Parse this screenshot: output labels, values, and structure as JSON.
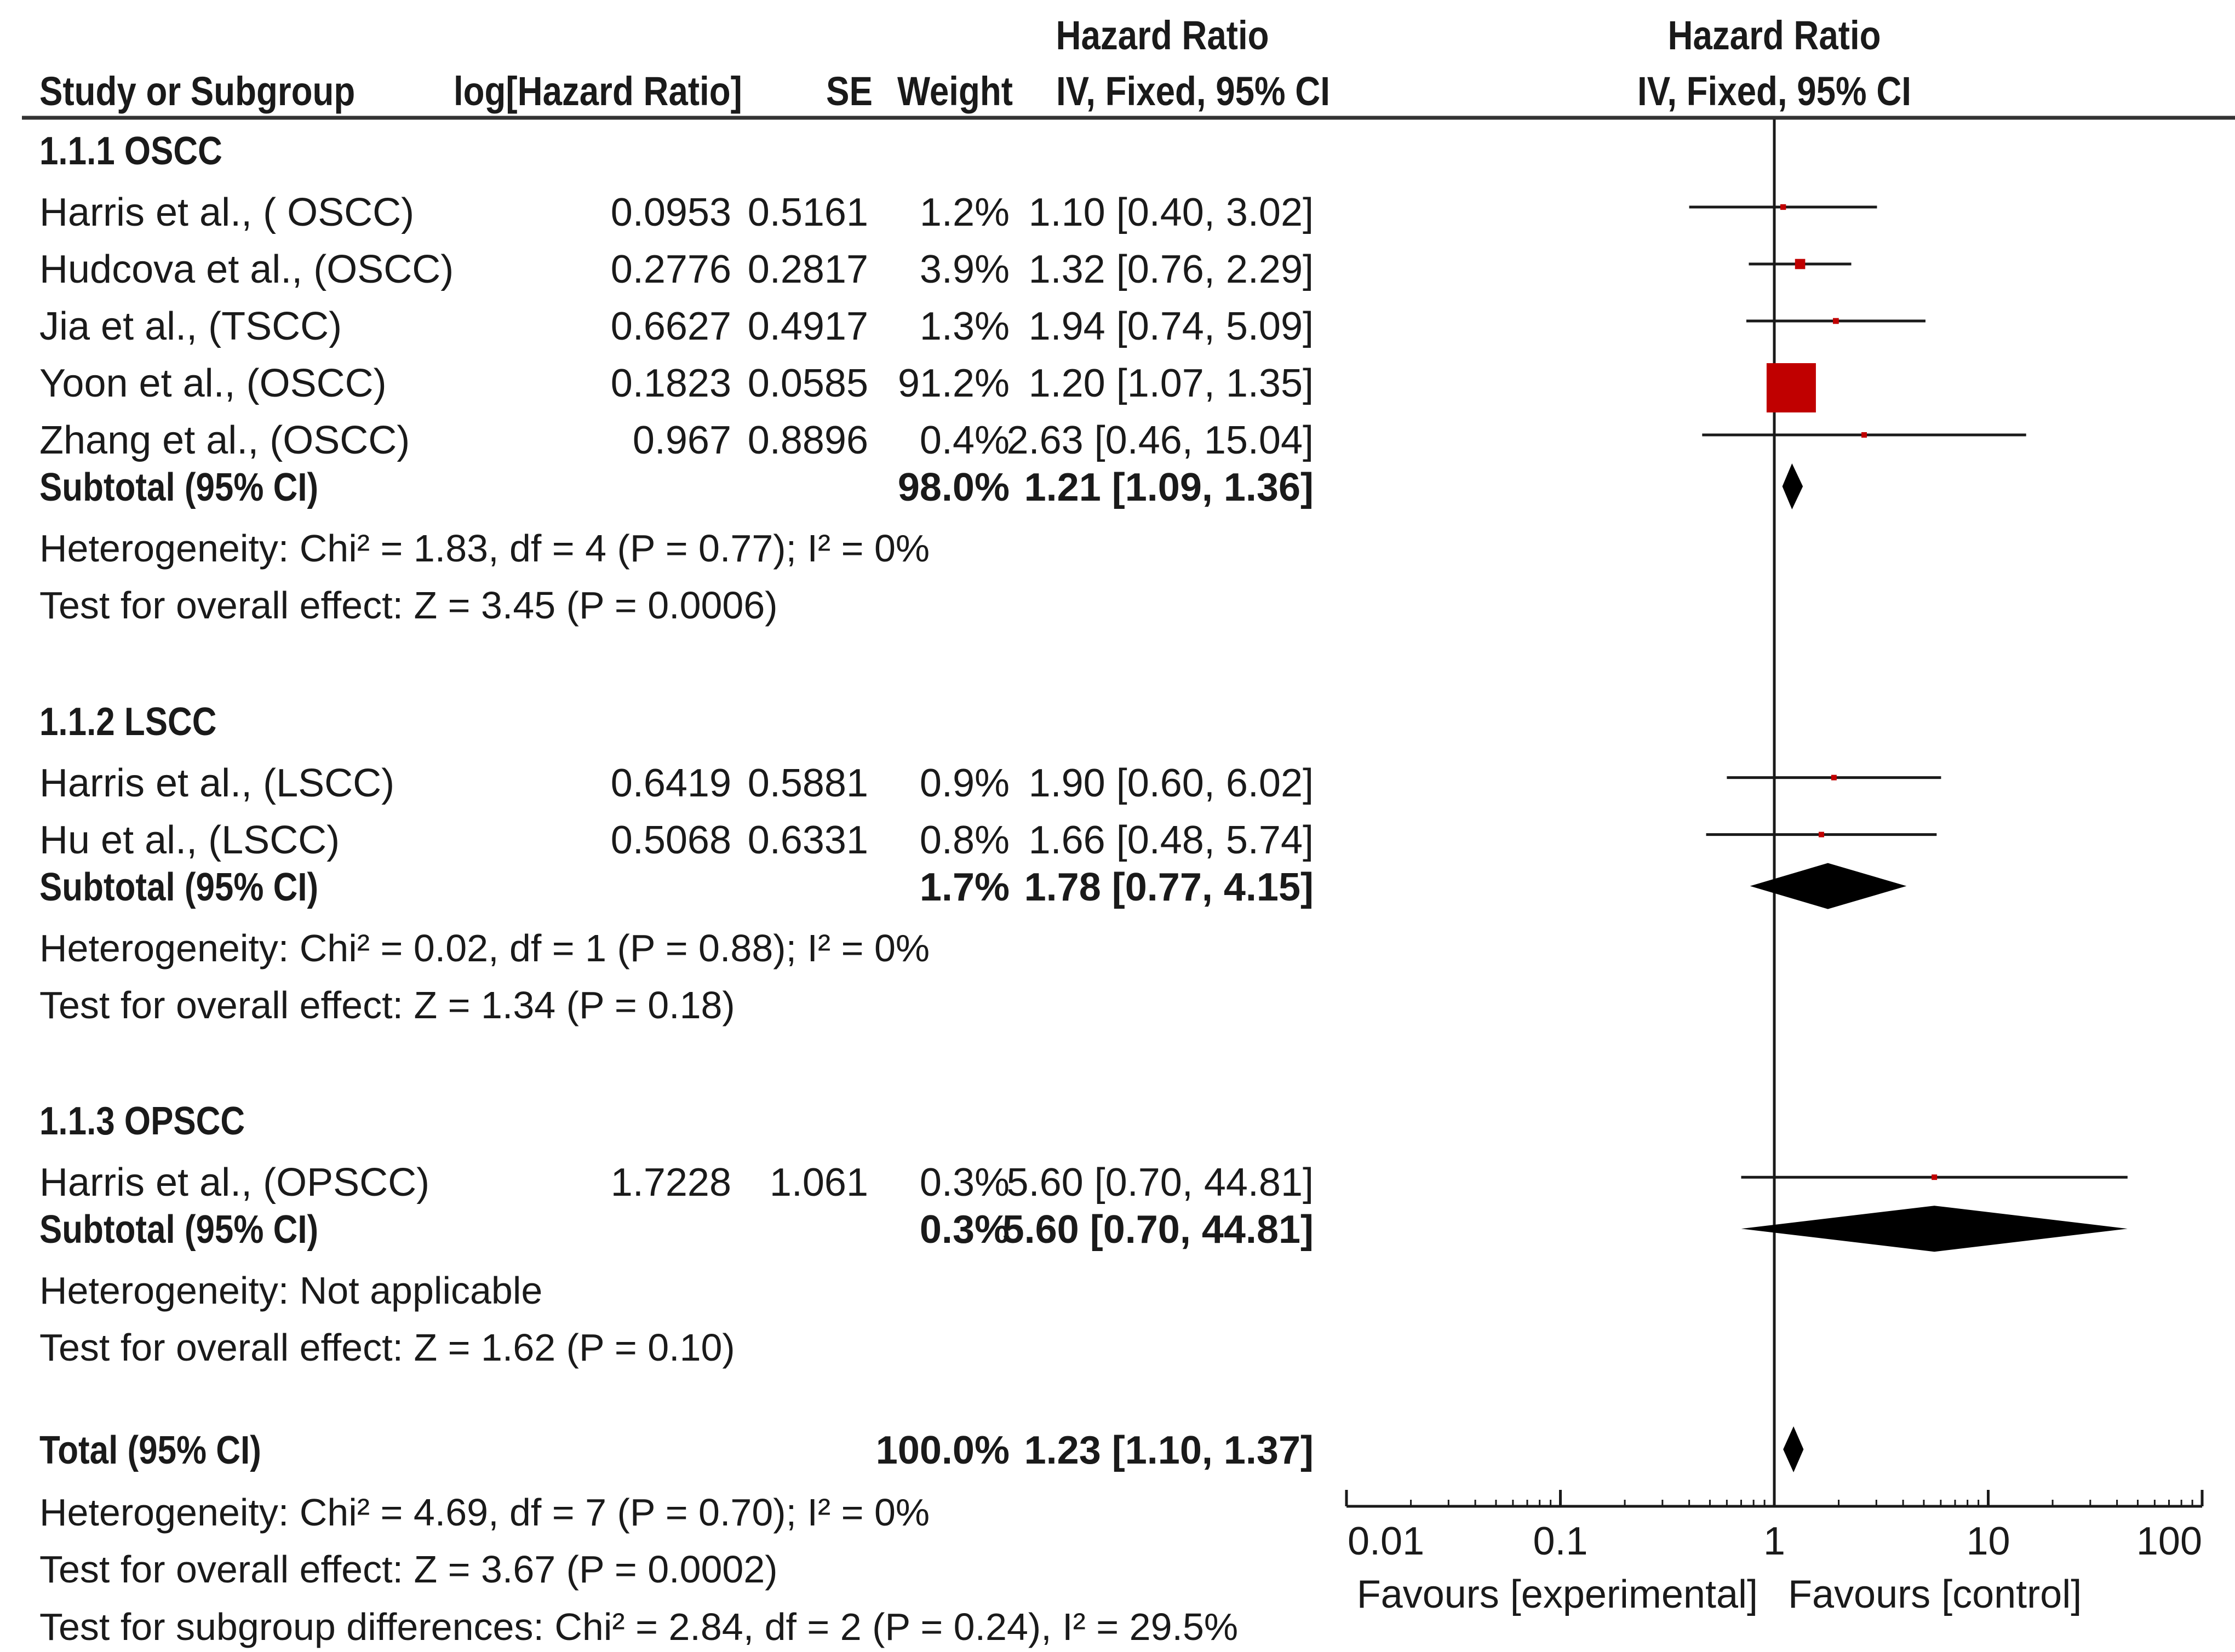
{
  "chart_data": {
    "type": "forest",
    "x_scale": "log",
    "xlim": [
      0.01,
      100
    ],
    "null_value": 1,
    "header": {
      "study": "Study or Subgroup",
      "loghr": "log[Hazard Ratio]",
      "se": "SE",
      "weight": "Weight",
      "ci_title": "Hazard Ratio",
      "ci_method": "IV, Fixed, 95% CI",
      "plot_title": "Hazard Ratio",
      "plot_method": "IV, Fixed, 95% CI"
    },
    "subgroups": [
      {
        "title": "1.1.1 OSCC",
        "studies": [
          {
            "name": "Harris et al., ( OSCC)",
            "loghr": "0.0953",
            "se": "0.5161",
            "weight": "1.2%",
            "ci": "1.10 [0.40, 3.02]",
            "hr": 1.1,
            "lo": 0.4,
            "hi": 3.02,
            "w": 1.2
          },
          {
            "name": "Hudcova et al., (OSCC)",
            "loghr": "0.2776",
            "se": "0.2817",
            "weight": "3.9%",
            "ci": "1.32 [0.76, 2.29]",
            "hr": 1.32,
            "lo": 0.76,
            "hi": 2.29,
            "w": 3.9
          },
          {
            "name": "Jia et al., (TSCC)",
            "loghr": "0.6627",
            "se": "0.4917",
            "weight": "1.3%",
            "ci": "1.94 [0.74, 5.09]",
            "hr": 1.94,
            "lo": 0.74,
            "hi": 5.09,
            "w": 1.3
          },
          {
            "name": "Yoon et al., (OSCC)",
            "loghr": "0.1823",
            "se": "0.0585",
            "weight": "91.2%",
            "ci": "1.20 [1.07, 1.35]",
            "hr": 1.2,
            "lo": 1.07,
            "hi": 1.35,
            "w": 91.2
          },
          {
            "name": "Zhang et al., (OSCC)",
            "loghr": "0.967",
            "se": "0.8896",
            "weight": "0.4%",
            "ci": "2.63 [0.46, 15.04]",
            "hr": 2.63,
            "lo": 0.46,
            "hi": 15.04,
            "w": 0.4
          }
        ],
        "subtotal": {
          "label": "Subtotal (95% CI)",
          "weight": "98.0%",
          "ci": "1.21 [1.09, 1.36]",
          "hr": 1.21,
          "lo": 1.09,
          "hi": 1.36
        },
        "heterogeneity": "Heterogeneity: Chi² = 1.83, df = 4 (P = 0.77); I² = 0%",
        "overall": "Test for overall effect: Z = 3.45 (P = 0.0006)"
      },
      {
        "title": "1.1.2 LSCC",
        "studies": [
          {
            "name": "Harris et al., (LSCC)",
            "loghr": "0.6419",
            "se": "0.5881",
            "weight": "0.9%",
            "ci": "1.90 [0.60, 6.02]",
            "hr": 1.9,
            "lo": 0.6,
            "hi": 6.02,
            "w": 0.9
          },
          {
            "name": "Hu et al., (LSCC)",
            "loghr": "0.5068",
            "se": "0.6331",
            "weight": "0.8%",
            "ci": "1.66 [0.48, 5.74]",
            "hr": 1.66,
            "lo": 0.48,
            "hi": 5.74,
            "w": 0.8
          }
        ],
        "subtotal": {
          "label": "Subtotal (95% CI)",
          "weight": "1.7%",
          "ci": "1.78 [0.77, 4.15]",
          "hr": 1.78,
          "lo": 0.77,
          "hi": 4.15
        },
        "heterogeneity": "Heterogeneity: Chi² = 0.02, df = 1 (P = 0.88); I² = 0%",
        "overall": "Test for overall effect: Z = 1.34 (P = 0.18)"
      },
      {
        "title": "1.1.3 OPSCC",
        "studies": [
          {
            "name": "Harris et al., (OPSCC)",
            "loghr": "1.7228",
            "se": "1.061",
            "weight": "0.3%",
            "ci": "5.60 [0.70, 44.81]",
            "hr": 5.6,
            "lo": 0.7,
            "hi": 44.81,
            "w": 0.3
          }
        ],
        "subtotal": {
          "label": "Subtotal (95% CI)",
          "weight": "0.3%",
          "ci": "5.60 [0.70, 44.81]",
          "hr": 5.6,
          "lo": 0.7,
          "hi": 44.81
        },
        "heterogeneity": "Heterogeneity: Not applicable",
        "overall": "Test for overall effect: Z = 1.62 (P = 0.10)"
      }
    ],
    "total": {
      "label": "Total (95% CI)",
      "weight": "100.0%",
      "ci": "1.23 [1.10, 1.37]",
      "hr": 1.23,
      "lo": 1.1,
      "hi": 1.37
    },
    "total_heterogeneity": "Heterogeneity: Chi² = 4.69, df = 7 (P = 0.70); I² = 0%",
    "total_overall": "Test for overall effect: Z = 3.67 (P = 0.0002)",
    "subgroup_differences": "Test for subgroup differences: Chi² = 2.84, df = 2 (P = 0.24), I² = 29.5%",
    "axis_ticks": [
      "0.01",
      "0.1",
      "1",
      "10",
      "100"
    ],
    "axis_tick_values": [
      0.01,
      0.1,
      1,
      10,
      100
    ],
    "favours_left": "Favours [experimental]",
    "favours_right": "Favours [control]",
    "colors": {
      "square": "#c00000",
      "line": "#1a1a1a",
      "diamond": "#000000"
    }
  }
}
